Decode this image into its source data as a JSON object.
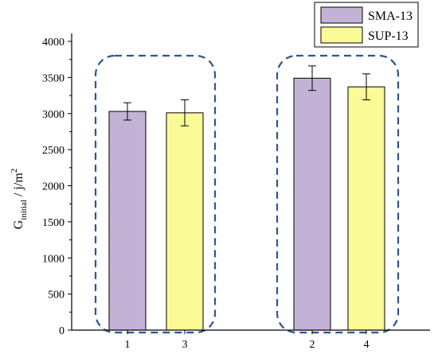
{
  "chart_data": {
    "type": "bar",
    "ylabel": {
      "main": "G",
      "sub": "initial",
      "unit": " / j/m",
      "sup": "2"
    },
    "ylim": [
      0,
      4000
    ],
    "yticks": [
      "0",
      "500",
      "1000",
      "1500",
      "2000",
      "2500",
      "3000",
      "3500",
      "4000"
    ],
    "grid": false,
    "legend_position": "top-right",
    "series": [
      {
        "name": "SMA-13",
        "color": "#c2b3d6"
      },
      {
        "name": "SUP-13",
        "color": "#fafa96"
      }
    ],
    "bars": [
      {
        "label": "1",
        "series": "SMA-13",
        "value": 3030,
        "error": 120
      },
      {
        "label": "3",
        "series": "SUP-13",
        "value": 3010,
        "error": 180
      },
      {
        "label": "2",
        "series": "SMA-13",
        "value": 3490,
        "error": 170
      },
      {
        "label": "4",
        "series": "SUP-13",
        "value": 3370,
        "error": 180
      }
    ],
    "groups": [
      [
        "1",
        "3"
      ],
      [
        "2",
        "4"
      ]
    ],
    "group_outline_color": "#2e5591"
  }
}
